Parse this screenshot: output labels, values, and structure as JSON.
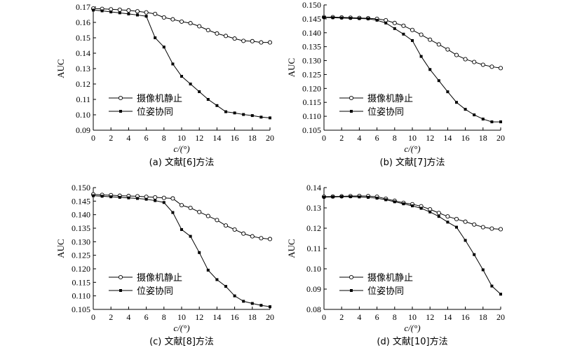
{
  "chart_data": [
    {
      "type": "line",
      "caption": "(a) 文献[6]方法",
      "xlabel": "c/(°)",
      "ylabel": "AUC",
      "xlim": [
        0,
        20
      ],
      "ylim": [
        0.09,
        0.17
      ],
      "xticks": [
        0,
        2,
        4,
        6,
        8,
        10,
        12,
        14,
        16,
        18,
        20
      ],
      "xtick_labels": [
        "0",
        "2",
        "4",
        "6",
        "8",
        "10",
        "12",
        "14",
        "16",
        "18",
        "20"
      ],
      "yticks": [
        0.09,
        0.1,
        0.11,
        0.12,
        0.13,
        0.14,
        0.15,
        0.16,
        0.17
      ],
      "ytick_labels": [
        "0.09",
        "0.10",
        "0.11",
        "0.12",
        "0.13",
        "0.14",
        "0.15",
        "0.16",
        "0.17"
      ],
      "legend_position": "lower-left",
      "x": [
        0,
        1,
        2,
        3,
        4,
        5,
        6,
        7,
        8,
        9,
        10,
        11,
        12,
        13,
        14,
        15,
        16,
        17,
        18,
        19,
        20
      ],
      "series": [
        {
          "name": "摄像机静止",
          "marker": "open-circle",
          "values": [
            0.169,
            0.1688,
            0.1685,
            0.1682,
            0.1678,
            0.1672,
            0.1665,
            0.1655,
            0.1632,
            0.162,
            0.1605,
            0.1595,
            0.1575,
            0.155,
            0.1528,
            0.1512,
            0.1495,
            0.148,
            0.1478,
            0.147,
            0.147
          ]
        },
        {
          "name": "位姿协同",
          "marker": "filled-square",
          "values": [
            0.168,
            0.1675,
            0.1668,
            0.1662,
            0.1655,
            0.1648,
            0.164,
            0.15,
            0.144,
            0.133,
            0.125,
            0.12,
            0.115,
            0.11,
            0.106,
            0.102,
            0.1012,
            0.1002,
            0.0995,
            0.0985,
            0.098
          ]
        }
      ]
    },
    {
      "type": "line",
      "caption": "(b) 文献[7]方法",
      "xlabel": "c/(°)",
      "ylabel": "AUC",
      "xlim": [
        0,
        20
      ],
      "ylim": [
        0.105,
        0.15
      ],
      "xticks": [
        0,
        2,
        4,
        6,
        8,
        10,
        12,
        14,
        16,
        18,
        20
      ],
      "xtick_labels": [
        "0",
        "2",
        "4",
        "6",
        "8",
        "10",
        "12",
        "14",
        "16",
        "18",
        "20"
      ],
      "yticks": [
        0.105,
        0.11,
        0.115,
        0.12,
        0.125,
        0.13,
        0.135,
        0.14,
        0.145,
        0.15
      ],
      "ytick_labels": [
        "0.105",
        "0.110",
        "0.115",
        "0.120",
        "0.125",
        "0.130",
        "0.135",
        "0.140",
        "0.145",
        "0.150"
      ],
      "legend_position": "lower-left",
      "x": [
        0,
        1,
        2,
        3,
        4,
        5,
        6,
        7,
        8,
        9,
        10,
        11,
        12,
        13,
        14,
        15,
        16,
        17,
        18,
        19,
        20
      ],
      "series": [
        {
          "name": "摄像机静止",
          "marker": "open-circle",
          "values": [
            0.1456,
            0.1456,
            0.1455,
            0.1454,
            0.1453,
            0.1452,
            0.145,
            0.1445,
            0.1435,
            0.1425,
            0.141,
            0.1393,
            0.1375,
            0.1358,
            0.134,
            0.132,
            0.1305,
            0.1295,
            0.1285,
            0.1278,
            0.1273
          ]
        },
        {
          "name": "位姿协同",
          "marker": "filled-square",
          "values": [
            0.1455,
            0.1454,
            0.1453,
            0.1452,
            0.1451,
            0.145,
            0.1445,
            0.1435,
            0.1415,
            0.1395,
            0.1372,
            0.1315,
            0.1268,
            0.1228,
            0.1188,
            0.115,
            0.1125,
            0.1105,
            0.109,
            0.108,
            0.108
          ]
        }
      ]
    },
    {
      "type": "line",
      "caption": "(c) 文献[8]方法",
      "xlabel": "c/(°)",
      "ylabel": "AUC",
      "xlim": [
        0,
        20
      ],
      "ylim": [
        0.105,
        0.15
      ],
      "xticks": [
        0,
        2,
        4,
        6,
        8,
        10,
        12,
        14,
        16,
        18,
        20
      ],
      "xtick_labels": [
        "0",
        "2",
        "4",
        "6",
        "8",
        "10",
        "12",
        "14",
        "16",
        "18",
        "20"
      ],
      "yticks": [
        0.105,
        0.11,
        0.115,
        0.12,
        0.125,
        0.13,
        0.135,
        0.14,
        0.145,
        0.15
      ],
      "ytick_labels": [
        "0.105",
        "0.110",
        "0.115",
        "0.120",
        "0.125",
        "0.130",
        "0.135",
        "0.140",
        "0.145",
        "0.150"
      ],
      "legend_position": "lower-left",
      "x": [
        0,
        1,
        2,
        3,
        4,
        5,
        6,
        7,
        8,
        9,
        10,
        11,
        12,
        13,
        14,
        15,
        16,
        17,
        18,
        19,
        20
      ],
      "series": [
        {
          "name": "摄像机静止",
          "marker": "open-circle",
          "values": [
            0.1475,
            0.1473,
            0.1472,
            0.147,
            0.1469,
            0.1468,
            0.1466,
            0.1464,
            0.1462,
            0.146,
            0.1435,
            0.1425,
            0.141,
            0.1395,
            0.138,
            0.136,
            0.1345,
            0.133,
            0.132,
            0.1313,
            0.131
          ]
        },
        {
          "name": "位姿协同",
          "marker": "filled-square",
          "values": [
            0.147,
            0.1468,
            0.1466,
            0.1464,
            0.1462,
            0.146,
            0.1457,
            0.1452,
            0.1445,
            0.1408,
            0.1345,
            0.132,
            0.126,
            0.1195,
            0.116,
            0.1135,
            0.11,
            0.108,
            0.1072,
            0.1065,
            0.106
          ]
        }
      ]
    },
    {
      "type": "line",
      "caption": "(d) 文献[10]方法",
      "xlabel": "c/(°)",
      "ylabel": "AUC",
      "xlim": [
        0,
        20
      ],
      "ylim": [
        0.08,
        0.14
      ],
      "xticks": [
        0,
        2,
        4,
        6,
        8,
        10,
        12,
        14,
        16,
        18,
        20
      ],
      "xtick_labels": [
        "0",
        "2",
        "4",
        "6",
        "8",
        "10",
        "12",
        "14",
        "16",
        "18",
        "20"
      ],
      "yticks": [
        0.08,
        0.09,
        0.1,
        0.11,
        0.12,
        0.13,
        0.14
      ],
      "ytick_labels": [
        "0.08",
        "0.09",
        "0.10",
        "0.11",
        "0.12",
        "0.13",
        "0.14"
      ],
      "legend_position": "lower-left",
      "x": [
        0,
        1,
        2,
        3,
        4,
        5,
        6,
        7,
        8,
        9,
        10,
        11,
        12,
        13,
        14,
        15,
        16,
        17,
        18,
        19,
        20
      ],
      "series": [
        {
          "name": "摄像机静止",
          "marker": "open-circle",
          "values": [
            0.1355,
            0.1356,
            0.1357,
            0.1358,
            0.1359,
            0.1358,
            0.1355,
            0.1345,
            0.1335,
            0.1325,
            0.1318,
            0.1308,
            0.1293,
            0.1275,
            0.1258,
            0.1245,
            0.1232,
            0.1218,
            0.1205,
            0.1198,
            0.1195
          ]
        },
        {
          "name": "位姿协同",
          "marker": "filled-square",
          "values": [
            0.1353,
            0.1354,
            0.1355,
            0.1355,
            0.1354,
            0.1352,
            0.1348,
            0.134,
            0.133,
            0.132,
            0.131,
            0.1298,
            0.128,
            0.1258,
            0.123,
            0.1205,
            0.114,
            0.107,
            0.0995,
            0.0915,
            0.0875
          ]
        }
      ]
    }
  ]
}
